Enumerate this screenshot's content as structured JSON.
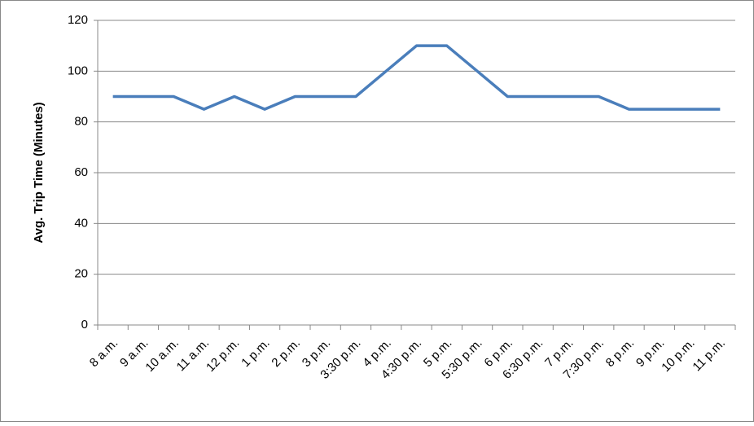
{
  "chart_data": {
    "type": "line",
    "y_label": "Avg. Trip Time (Minutes)",
    "categories": [
      "8 a.m.",
      "9 a.m.",
      "10 a.m.",
      "11 a.m.",
      "12 p.m.",
      "1 p.m.",
      "2 p.m.",
      "3 p.m.",
      "3:30 p.m.",
      "4 p.m.",
      "4:30 p.m.",
      "5 p.m.",
      "5:30 p.m.",
      "6 p.m.",
      "6:30 p.m.",
      "7 p.m.",
      "7:30 p.m.",
      "8 p.m.",
      "9 p.m.",
      "10 p.m.",
      "11 p.m."
    ],
    "values": [
      90,
      90,
      90,
      85,
      90,
      85,
      90,
      90,
      90,
      100,
      110,
      110,
      100,
      90,
      90,
      90,
      90,
      85,
      85,
      85,
      85
    ],
    "color": "#4a7ebb",
    "ylim": [
      0,
      120
    ],
    "yticks": [
      0,
      20,
      40,
      60,
      80,
      100,
      120
    ],
    "grid": true
  }
}
